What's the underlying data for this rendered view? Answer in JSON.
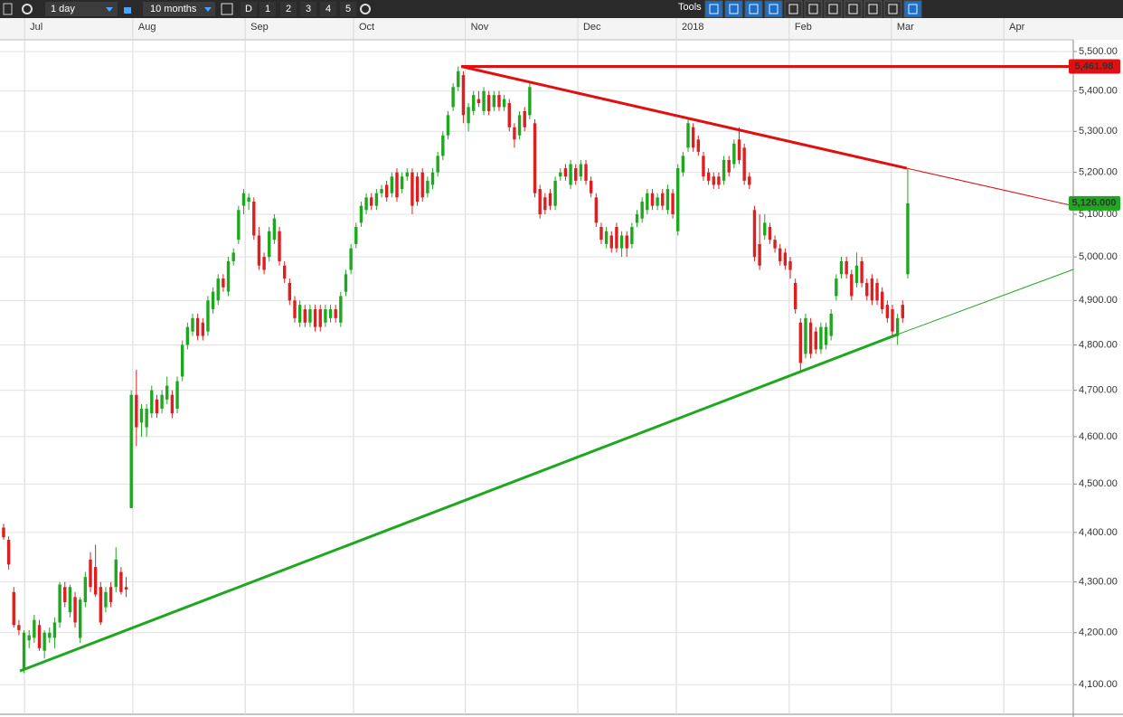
{
  "toolbar": {
    "interval": "1 day",
    "range": "10 months",
    "buttons": [
      "D",
      "1",
      "2",
      "3",
      "4",
      "5"
    ],
    "tools": "Tools"
  },
  "chart_data": {
    "type": "candlestick",
    "log_y": true,
    "grid": true,
    "up_color": "#1fa81f",
    "down_color": "#dd1f1f",
    "xlim": [
      -0.7,
      209.4
    ],
    "ylim": [
      4044,
      5530
    ],
    "xticks": [
      {
        "value": 4.1,
        "label": "Jul"
      },
      {
        "value": 25.3,
        "label": "Aug"
      },
      {
        "value": 47.3,
        "label": "Sep"
      },
      {
        "value": 68.5,
        "label": "Oct"
      },
      {
        "value": 90.4,
        "label": "Nov"
      },
      {
        "value": 112.4,
        "label": "Dec"
      },
      {
        "value": 131.7,
        "label": "2018"
      },
      {
        "value": 153.8,
        "label": "Feb"
      },
      {
        "value": 173.8,
        "label": "Mar"
      },
      {
        "value": 195.8,
        "label": "Apr"
      }
    ],
    "yticks": [
      {
        "value": 5500,
        "label": "5,500.00"
      },
      {
        "value": 5400,
        "label": "5,400.00"
      },
      {
        "value": 5300,
        "label": "5,300.00"
      },
      {
        "value": 5200,
        "label": "5,200.00"
      },
      {
        "value": 5100,
        "label": "5,100.00"
      },
      {
        "value": 5000,
        "label": "5,000.00"
      },
      {
        "value": 4900,
        "label": "4,900.00"
      },
      {
        "value": 4800,
        "label": "4,800.00"
      },
      {
        "value": 4700,
        "label": "4,700.00"
      },
      {
        "value": 4600,
        "label": "4,600.00"
      },
      {
        "value": 4500,
        "label": "4,500.00"
      },
      {
        "value": 4400,
        "label": "4,400.00"
      },
      {
        "value": 4300,
        "label": "4,300.00"
      },
      {
        "value": 4200,
        "label": "4,200.00"
      },
      {
        "value": 4100,
        "label": "4,100.00"
      }
    ],
    "price_markers": [
      {
        "value": 5461.98,
        "label": "5,461.98",
        "color": "#e01010"
      },
      {
        "value": 5126,
        "label": "5,126.000",
        "color": "#1fa81f"
      }
    ],
    "trend_lines": [
      {
        "color": "#e01010",
        "x": [
          89.6,
          209.4
        ],
        "y": [
          5461.98,
          5461.98
        ]
      },
      {
        "color": "#e01010",
        "x": [
          89.6,
          176.8,
          209.4
        ],
        "y": [
          5462,
          5210,
          5120
        ]
      },
      {
        "color": "#1fa81f",
        "x": [
          3.2,
          174.9,
          209.4
        ],
        "y": [
          4126,
          4823,
          4971
        ]
      }
    ],
    "candles": [
      [
        4410,
        4418,
        4385,
        4390
      ],
      [
        4385,
        4392,
        4325,
        4335
      ],
      [
        4280,
        4290,
        4210,
        4215
      ],
      [
        4215,
        4225,
        4195,
        4205
      ],
      [
        4130,
        4205,
        4122,
        4200
      ],
      [
        4185,
        4205,
        4170,
        4195
      ],
      [
        4190,
        4235,
        4180,
        4225
      ],
      [
        4215,
        4225,
        4165,
        4170
      ],
      [
        4165,
        4205,
        4150,
        4200
      ],
      [
        4190,
        4210,
        4180,
        4200
      ],
      [
        4190,
        4230,
        4170,
        4220
      ],
      [
        4220,
        4300,
        4210,
        4295
      ],
      [
        4290,
        4300,
        4250,
        4260
      ],
      [
        4240,
        4295,
        4230,
        4290
      ],
      [
        4270,
        4280,
        4210,
        4220
      ],
      [
        4190,
        4270,
        4180,
        4265
      ],
      [
        4260,
        4320,
        4250,
        4310
      ],
      [
        4345,
        4360,
        4280,
        4290
      ],
      [
        4330,
        4375,
        4270,
        4275
      ],
      [
        4290,
        4300,
        4215,
        4220
      ],
      [
        4250,
        4290,
        4240,
        4280
      ],
      [
        4290,
        4300,
        4250,
        4260
      ],
      [
        4290,
        4370,
        4280,
        4345
      ],
      [
        4320,
        4330,
        4275,
        4280
      ],
      [
        4290,
        4310,
        4270,
        4285
      ],
      [
        4450,
        4700,
        4450,
        4690
      ],
      [
        4690,
        4745,
        4580,
        4620
      ],
      [
        4630,
        4670,
        4600,
        4660
      ],
      [
        4620,
        4670,
        4600,
        4660
      ],
      [
        4650,
        4710,
        4640,
        4700
      ],
      [
        4680,
        4690,
        4640,
        4650
      ],
      [
        4660,
        4700,
        4650,
        4690
      ],
      [
        4680,
        4730,
        4670,
        4710
      ],
      [
        4690,
        4700,
        4640,
        4650
      ],
      [
        4660,
        4730,
        4650,
        4720
      ],
      [
        4730,
        4810,
        4720,
        4800
      ],
      [
        4800,
        4850,
        4790,
        4840
      ],
      [
        4830,
        4870,
        4820,
        4860
      ],
      [
        4860,
        4870,
        4810,
        4820
      ],
      [
        4850,
        4860,
        4810,
        4820
      ],
      [
        4830,
        4910,
        4820,
        4900
      ],
      [
        4880,
        4930,
        4870,
        4920
      ],
      [
        4900,
        4960,
        4890,
        4950
      ],
      [
        4950,
        4960,
        4920,
        4930
      ],
      [
        4920,
        5000,
        4910,
        4990
      ],
      [
        4990,
        5020,
        4980,
        5010
      ],
      [
        5040,
        5120,
        5030,
        5110
      ],
      [
        5120,
        5160,
        5100,
        5150
      ],
      [
        5130,
        5150,
        5110,
        5140
      ],
      [
        5130,
        5140,
        5040,
        5050
      ],
      [
        5050,
        5070,
        4970,
        4980
      ],
      [
        5000,
        5010,
        4960,
        4970
      ],
      [
        5000,
        5070,
        4990,
        5060
      ],
      [
        5040,
        5100,
        5030,
        5090
      ],
      [
        5060,
        5070,
        4980,
        4990
      ],
      [
        4980,
        4990,
        4940,
        4950
      ],
      [
        4940,
        4950,
        4890,
        4900
      ],
      [
        4900,
        4910,
        4850,
        4860
      ],
      [
        4850,
        4900,
        4840,
        4890
      ],
      [
        4880,
        4890,
        4840,
        4850
      ],
      [
        4850,
        4890,
        4840,
        4880
      ],
      [
        4880,
        4890,
        4830,
        4840
      ],
      [
        4880,
        4890,
        4830,
        4840
      ],
      [
        4850,
        4890,
        4840,
        4880
      ],
      [
        4860,
        4890,
        4850,
        4880
      ],
      [
        4880,
        4890,
        4850,
        4860
      ],
      [
        4850,
        4920,
        4840,
        4910
      ],
      [
        4920,
        4970,
        4910,
        4960
      ],
      [
        4970,
        5030,
        4960,
        5020
      ],
      [
        5030,
        5080,
        5020,
        5070
      ],
      [
        5080,
        5130,
        5070,
        5120
      ],
      [
        5110,
        5150,
        5100,
        5140
      ],
      [
        5140,
        5150,
        5110,
        5120
      ],
      [
        5120,
        5160,
        5110,
        5150
      ],
      [
        5150,
        5170,
        5140,
        5160
      ],
      [
        5170,
        5180,
        5130,
        5140
      ],
      [
        5150,
        5200,
        5140,
        5190
      ],
      [
        5200,
        5210,
        5130,
        5140
      ],
      [
        5160,
        5200,
        5150,
        5190
      ],
      [
        5190,
        5210,
        5180,
        5200
      ],
      [
        5200,
        5210,
        5100,
        5120
      ],
      [
        5190,
        5200,
        5120,
        5130
      ],
      [
        5200,
        5210,
        5130,
        5140
      ],
      [
        5150,
        5190,
        5140,
        5180
      ],
      [
        5170,
        5210,
        5160,
        5200
      ],
      [
        5200,
        5250,
        5190,
        5240
      ],
      [
        5240,
        5300,
        5230,
        5290
      ],
      [
        5290,
        5350,
        5280,
        5340
      ],
      [
        5360,
        5420,
        5350,
        5410
      ],
      [
        5410,
        5462,
        5400,
        5450
      ],
      [
        5440,
        5450,
        5320,
        5340
      ],
      [
        5320,
        5370,
        5300,
        5360
      ],
      [
        5350,
        5400,
        5340,
        5390
      ],
      [
        5380,
        5400,
        5360,
        5370
      ],
      [
        5350,
        5410,
        5340,
        5400
      ],
      [
        5390,
        5400,
        5340,
        5350
      ],
      [
        5360,
        5400,
        5350,
        5390
      ],
      [
        5390,
        5400,
        5350,
        5360
      ],
      [
        5360,
        5390,
        5350,
        5380
      ],
      [
        5370,
        5380,
        5300,
        5310
      ],
      [
        5310,
        5320,
        5260,
        5280
      ],
      [
        5290,
        5350,
        5280,
        5340
      ],
      [
        5350,
        5360,
        5300,
        5310
      ],
      [
        5340,
        5420,
        5330,
        5410
      ],
      [
        5320,
        5330,
        5140,
        5150
      ],
      [
        5160,
        5170,
        5090,
        5100
      ],
      [
        5140,
        5150,
        5100,
        5110
      ],
      [
        5150,
        5160,
        5110,
        5120
      ],
      [
        5120,
        5190,
        5110,
        5180
      ],
      [
        5190,
        5210,
        5180,
        5200
      ],
      [
        5210,
        5220,
        5180,
        5190
      ],
      [
        5170,
        5230,
        5160,
        5220
      ],
      [
        5210,
        5220,
        5170,
        5180
      ],
      [
        5190,
        5230,
        5180,
        5220
      ],
      [
        5220,
        5230,
        5170,
        5180
      ],
      [
        5180,
        5190,
        5140,
        5150
      ],
      [
        5140,
        5150,
        5070,
        5080
      ],
      [
        5070,
        5080,
        5030,
        5040
      ],
      [
        5030,
        5070,
        5020,
        5060
      ],
      [
        5050,
        5060,
        5010,
        5020
      ],
      [
        5070,
        5080,
        5010,
        5020
      ],
      [
        5020,
        5060,
        5000,
        5050
      ],
      [
        5050,
        5060,
        5000,
        5020
      ],
      [
        5030,
        5080,
        5020,
        5070
      ],
      [
        5080,
        5110,
        5070,
        5100
      ],
      [
        5090,
        5140,
        5080,
        5130
      ],
      [
        5110,
        5160,
        5100,
        5150
      ],
      [
        5150,
        5160,
        5110,
        5120
      ],
      [
        5120,
        5150,
        5110,
        5140
      ],
      [
        5150,
        5160,
        5110,
        5120
      ],
      [
        5110,
        5170,
        5100,
        5160
      ],
      [
        5150,
        5160,
        5090,
        5100
      ],
      [
        5060,
        5220,
        5050,
        5210
      ],
      [
        5200,
        5250,
        5190,
        5240
      ],
      [
        5260,
        5330,
        5250,
        5320
      ],
      [
        5310,
        5320,
        5250,
        5260
      ],
      [
        5280,
        5290,
        5240,
        5250
      ],
      [
        5240,
        5250,
        5180,
        5190
      ],
      [
        5200,
        5210,
        5170,
        5180
      ],
      [
        5190,
        5200,
        5160,
        5170
      ],
      [
        5190,
        5200,
        5160,
        5170
      ],
      [
        5180,
        5240,
        5170,
        5230
      ],
      [
        5230,
        5240,
        5190,
        5200
      ],
      [
        5220,
        5280,
        5210,
        5270
      ],
      [
        5280,
        5310,
        5220,
        5230
      ],
      [
        5260,
        5270,
        5170,
        5180
      ],
      [
        5190,
        5200,
        5160,
        5170
      ],
      [
        5110,
        5120,
        4990,
        5000
      ],
      [
        5030,
        5100,
        4970,
        4980
      ],
      [
        5050,
        5100,
        5040,
        5080
      ],
      [
        5070,
        5080,
        5030,
        5040
      ],
      [
        5040,
        5050,
        5010,
        5020
      ],
      [
        5020,
        5030,
        4980,
        4990
      ],
      [
        5010,
        5020,
        4970,
        4980
      ],
      [
        4990,
        5000,
        4950,
        4970
      ],
      [
        4940,
        4950,
        4870,
        4880
      ],
      [
        4850,
        4860,
        4740,
        4760
      ],
      [
        4780,
        4870,
        4770,
        4860
      ],
      [
        4850,
        4860,
        4770,
        4780
      ],
      [
        4830,
        4840,
        4780,
        4790
      ],
      [
        4790,
        4850,
        4780,
        4840
      ],
      [
        4800,
        4850,
        4790,
        4840
      ],
      [
        4820,
        4880,
        4810,
        4870
      ],
      [
        4910,
        4960,
        4900,
        4950
      ],
      [
        4960,
        5000,
        4950,
        4990
      ],
      [
        4990,
        5000,
        4950,
        4960
      ],
      [
        4960,
        4970,
        4900,
        4910
      ],
      [
        4940,
        5010,
        4930,
        4980
      ],
      [
        4990,
        5000,
        4930,
        4940
      ],
      [
        4940,
        4950,
        4900,
        4910
      ],
      [
        4950,
        4960,
        4890,
        4900
      ],
      [
        4940,
        4950,
        4890,
        4900
      ],
      [
        4920,
        4930,
        4870,
        4880
      ],
      [
        4890,
        4900,
        4850,
        4860
      ],
      [
        4880,
        4890,
        4820,
        4830
      ],
      [
        4820,
        4870,
        4800,
        4860
      ],
      [
        4890,
        4900,
        4850,
        4860
      ],
      [
        4960,
        5210,
        4950,
        5126
      ]
    ]
  }
}
